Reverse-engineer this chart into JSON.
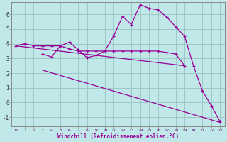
{
  "background_color": "#c0e8e8",
  "grid_color": "#a0c8c8",
  "line_color": "#990099",
  "xlabel": "Windchill (Refroidissement éolien,°C)",
  "xlim": [
    -0.5,
    23.5
  ],
  "ylim": [
    -1.6,
    6.8
  ],
  "yticks": [
    -1,
    0,
    1,
    2,
    3,
    4,
    5,
    6
  ],
  "xticks": [
    0,
    1,
    2,
    3,
    4,
    5,
    6,
    7,
    8,
    9,
    10,
    11,
    12,
    13,
    14,
    15,
    16,
    17,
    18,
    19,
    20,
    21,
    22,
    23
  ],
  "series": {
    "line1_x": [
      0,
      1,
      2,
      3,
      4,
      5,
      6,
      7,
      8,
      9,
      10,
      11,
      12,
      13,
      14,
      15,
      16,
      17,
      18,
      19
    ],
    "line1_y": [
      3.85,
      4.0,
      3.85,
      3.85,
      3.85,
      3.85,
      3.65,
      3.5,
      3.5,
      3.5,
      3.5,
      3.5,
      3.5,
      3.5,
      3.5,
      3.5,
      3.5,
      3.4,
      3.3,
      2.5
    ],
    "line2_x": [
      3,
      4,
      5,
      6,
      7,
      8,
      9,
      10,
      11,
      12,
      13,
      14,
      15,
      16,
      17,
      18,
      19,
      20,
      21,
      22,
      23
    ],
    "line2_y": [
      3.3,
      3.1,
      3.85,
      4.1,
      3.6,
      3.05,
      3.2,
      3.5,
      4.5,
      5.85,
      5.3,
      6.65,
      6.4,
      6.3,
      5.8,
      5.15,
      4.5,
      2.5,
      0.8,
      -0.2,
      -1.3
    ],
    "line3_x": [
      0,
      19
    ],
    "line3_y": [
      3.85,
      2.5
    ],
    "line4_x": [
      3,
      23
    ],
    "line4_y": [
      2.2,
      -1.35
    ]
  }
}
